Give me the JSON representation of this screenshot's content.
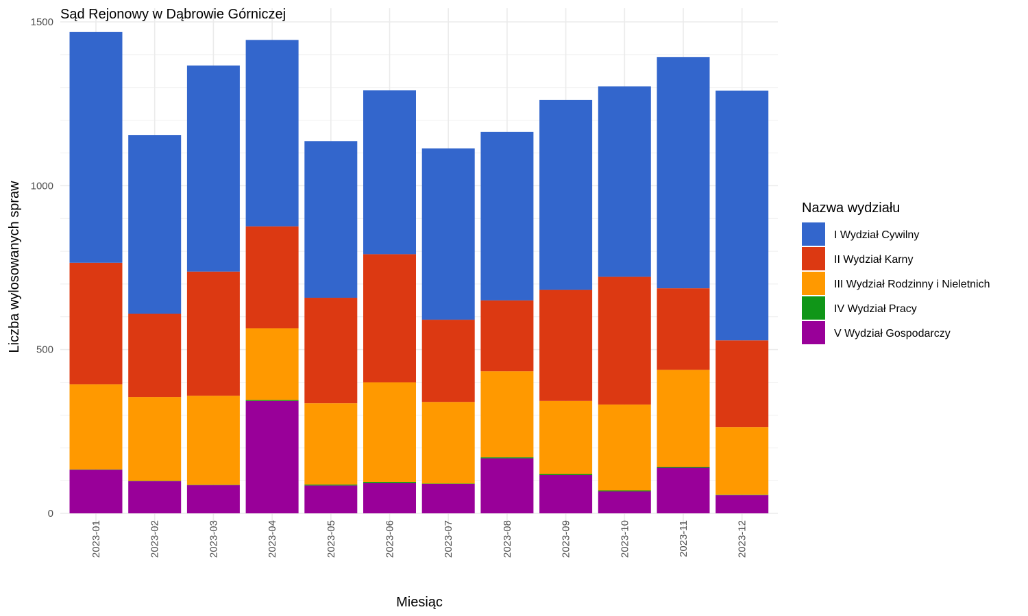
{
  "chart_data": {
    "type": "bar",
    "stacked": true,
    "title": "Sąd Rejonowy w Dąbrowie Górniczej",
    "xlabel": "Miesiąc",
    "ylabel": "Liczba wylosowanych spraw",
    "ylim": [
      0,
      1500
    ],
    "yticks": [
      0,
      500,
      1000,
      1500
    ],
    "ytick_labels": [
      "0",
      "500",
      "1000",
      "1500"
    ],
    "grid": true,
    "legend": {
      "title": "Nazwa wydziału",
      "position": "right"
    },
    "categories": [
      "2023-01",
      "2023-02",
      "2023-03",
      "2023-04",
      "2023-05",
      "2023-06",
      "2023-07",
      "2023-08",
      "2023-09",
      "2023-10",
      "2023-11",
      "2023-12"
    ],
    "series": [
      {
        "name": "V Wydział Gospodarczy",
        "color": "#990099",
        "values": [
          133,
          98,
          86,
          343,
          85,
          92,
          90,
          168,
          117,
          67,
          139,
          56
        ]
      },
      {
        "name": "IV Wydział Pracy",
        "color": "#109618",
        "values": [
          1,
          1,
          1,
          3,
          3,
          4,
          1,
          3,
          3,
          3,
          3,
          1
        ]
      },
      {
        "name": "III Wydział Rodzinny i Nieletnich",
        "color": "#FF9900",
        "values": [
          260,
          256,
          272,
          219,
          248,
          304,
          249,
          263,
          223,
          262,
          296,
          206
        ]
      },
      {
        "name": "II Wydział Karny",
        "color": "#DC3912",
        "values": [
          371,
          254,
          379,
          311,
          322,
          391,
          251,
          216,
          339,
          390,
          249,
          265
        ]
      },
      {
        "name": "I Wydział Cywilny",
        "color": "#3366CC",
        "values": [
          704,
          546,
          629,
          569,
          478,
          500,
          523,
          514,
          580,
          581,
          706,
          762
        ]
      }
    ]
  }
}
